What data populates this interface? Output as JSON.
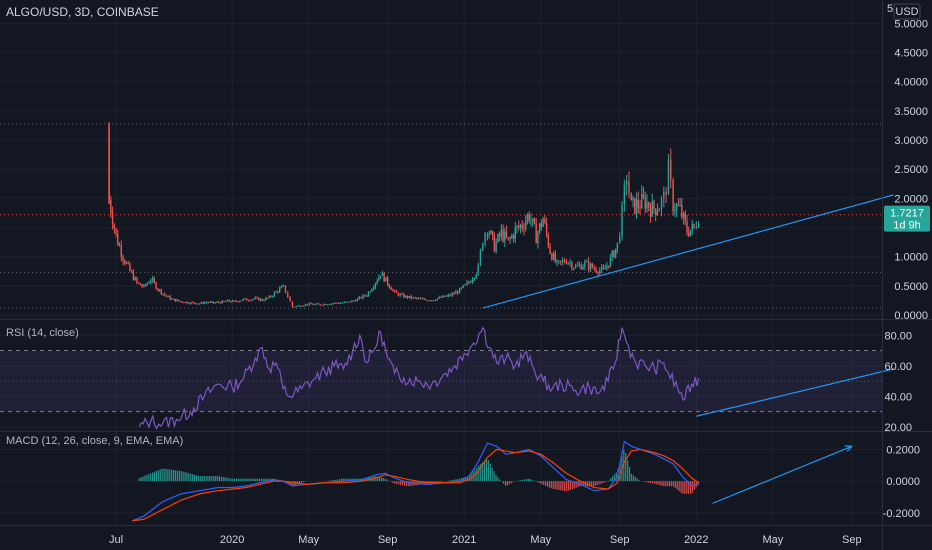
{
  "chart_data": {
    "type": "candlestick",
    "title": "ALGO/USD, 3D, COINBASE",
    "currency": "USD",
    "colors": {
      "background": "#131722",
      "up": "#26a69a",
      "down": "#ef5350",
      "trendline": "#2196f3",
      "rsi_line": "#7e57c2",
      "rsi_band": "#7e57c2",
      "macd_line": "#2962ff",
      "signal_line": "#ff3d00",
      "price_badge": "#26a69a"
    },
    "x_axis": {
      "ticks": [
        "Jul",
        "2020",
        "May",
        "Sep",
        "2021",
        "May",
        "Sep",
        "2022",
        "May",
        "Sep"
      ],
      "tick_dates": [
        2019.5,
        2020.0,
        2020.33,
        2020.67,
        2021.0,
        2021.33,
        2021.67,
        2022.0,
        2022.33,
        2022.67
      ]
    },
    "price_pane": {
      "y_ticks": [
        "5.0000",
        "4.5000",
        "4.0000",
        "3.5000",
        "3.0000",
        "2.5000",
        "2.0000",
        "1.5000",
        "1.0000",
        "0.5000",
        "0.0000"
      ],
      "ylim": [
        -0.05,
        5.4
      ],
      "partial_top_label": "5",
      "last_price": "1.7217",
      "countdown": "1d 9h",
      "hlines": [
        3.28,
        1.72,
        0.73,
        0.12
      ],
      "trendline": [
        [
          2021.08,
          0.12
        ],
        [
          2022.85,
          2.06
        ]
      ],
      "series_close": [
        [
          2019.47,
          1.98
        ],
        [
          2019.5,
          1.35
        ],
        [
          2019.53,
          1.0
        ],
        [
          2019.56,
          0.75
        ],
        [
          2019.59,
          0.55
        ],
        [
          2019.62,
          0.48
        ],
        [
          2019.65,
          0.62
        ],
        [
          2019.68,
          0.45
        ],
        [
          2019.71,
          0.34
        ],
        [
          2019.74,
          0.27
        ],
        [
          2019.77,
          0.24
        ],
        [
          2019.8,
          0.22
        ],
        [
          2019.83,
          0.21
        ],
        [
          2019.86,
          0.2
        ],
        [
          2019.89,
          0.22
        ],
        [
          2019.92,
          0.21
        ],
        [
          2019.95,
          0.22
        ],
        [
          2019.98,
          0.24
        ],
        [
          2020.01,
          0.23
        ],
        [
          2020.04,
          0.26
        ],
        [
          2020.07,
          0.27
        ],
        [
          2020.1,
          0.28
        ],
        [
          2020.13,
          0.26
        ],
        [
          2020.16,
          0.3
        ],
        [
          2020.19,
          0.4
        ],
        [
          2020.22,
          0.48
        ],
        [
          2020.24,
          0.32
        ],
        [
          2020.26,
          0.14
        ],
        [
          2020.3,
          0.17
        ],
        [
          2020.34,
          0.19
        ],
        [
          2020.38,
          0.18
        ],
        [
          2020.42,
          0.2
        ],
        [
          2020.46,
          0.21
        ],
        [
          2020.5,
          0.22
        ],
        [
          2020.54,
          0.27
        ],
        [
          2020.58,
          0.35
        ],
        [
          2020.61,
          0.52
        ],
        [
          2020.64,
          0.72
        ],
        [
          2020.67,
          0.55
        ],
        [
          2020.7,
          0.38
        ],
        [
          2020.74,
          0.32
        ],
        [
          2020.78,
          0.29
        ],
        [
          2020.82,
          0.27
        ],
        [
          2020.86,
          0.26
        ],
        [
          2020.9,
          0.3
        ],
        [
          2020.94,
          0.34
        ],
        [
          2020.98,
          0.42
        ],
        [
          2021.02,
          0.56
        ],
        [
          2021.06,
          0.8
        ],
        [
          2021.08,
          1.32
        ],
        [
          2021.1,
          1.52
        ],
        [
          2021.13,
          1.18
        ],
        [
          2021.16,
          1.4
        ],
        [
          2021.19,
          1.25
        ],
        [
          2021.22,
          1.45
        ],
        [
          2021.25,
          1.55
        ],
        [
          2021.28,
          1.72
        ],
        [
          2021.31,
          1.35
        ],
        [
          2021.34,
          1.65
        ],
        [
          2021.37,
          1.1
        ],
        [
          2021.4,
          0.85
        ],
        [
          2021.44,
          0.95
        ],
        [
          2021.48,
          0.82
        ],
        [
          2021.52,
          0.88
        ],
        [
          2021.56,
          0.8
        ],
        [
          2021.6,
          0.75
        ],
        [
          2021.63,
          0.95
        ],
        [
          2021.66,
          1.2
        ],
        [
          2021.68,
          1.75
        ],
        [
          2021.7,
          2.4
        ],
        [
          2021.72,
          1.85
        ],
        [
          2021.75,
          1.9
        ],
        [
          2021.78,
          1.95
        ],
        [
          2021.81,
          1.82
        ],
        [
          2021.84,
          1.88
        ],
        [
          2021.86,
          2.0
        ],
        [
          2021.88,
          2.45
        ],
        [
          2021.9,
          1.9
        ],
        [
          2021.93,
          1.8
        ],
        [
          2021.96,
          1.45
        ],
        [
          2021.99,
          1.48
        ],
        [
          2022.01,
          1.72
        ]
      ]
    },
    "rsi_pane": {
      "label": "RSI (14, close)",
      "y_ticks": [
        "80.00",
        "60.00",
        "40.00",
        "20.00"
      ],
      "ylim": [
        18,
        90
      ],
      "band": [
        30,
        70
      ],
      "midline": 50,
      "trendline": [
        [
          2022.0,
          27
        ],
        [
          2022.85,
          58
        ]
      ],
      "series": [
        [
          2019.6,
          20
        ],
        [
          2019.65,
          24
        ],
        [
          2019.7,
          22
        ],
        [
          2019.76,
          25
        ],
        [
          2019.82,
          30
        ],
        [
          2019.88,
          40
        ],
        [
          2019.94,
          48
        ],
        [
          2020.0,
          46
        ],
        [
          2020.05,
          52
        ],
        [
          2020.1,
          65
        ],
        [
          2020.13,
          72
        ],
        [
          2020.16,
          58
        ],
        [
          2020.19,
          62
        ],
        [
          2020.22,
          45
        ],
        [
          2020.25,
          40
        ],
        [
          2020.3,
          45
        ],
        [
          2020.36,
          52
        ],
        [
          2020.4,
          56
        ],
        [
          2020.44,
          60
        ],
        [
          2020.48,
          58
        ],
        [
          2020.52,
          70
        ],
        [
          2020.55,
          80
        ],
        [
          2020.58,
          62
        ],
        [
          2020.61,
          70
        ],
        [
          2020.64,
          82
        ],
        [
          2020.67,
          65
        ],
        [
          2020.7,
          55
        ],
        [
          2020.74,
          52
        ],
        [
          2020.8,
          50
        ],
        [
          2020.86,
          48
        ],
        [
          2020.92,
          55
        ],
        [
          2020.96,
          60
        ],
        [
          2021.0,
          68
        ],
        [
          2021.04,
          75
        ],
        [
          2021.08,
          85
        ],
        [
          2021.11,
          72
        ],
        [
          2021.14,
          62
        ],
        [
          2021.18,
          65
        ],
        [
          2021.22,
          60
        ],
        [
          2021.26,
          68
        ],
        [
          2021.3,
          58
        ],
        [
          2021.34,
          50
        ],
        [
          2021.38,
          45
        ],
        [
          2021.42,
          48
        ],
        [
          2021.48,
          44
        ],
        [
          2021.54,
          46
        ],
        [
          2021.58,
          42
        ],
        [
          2021.62,
          50
        ],
        [
          2021.65,
          62
        ],
        [
          2021.68,
          85
        ],
        [
          2021.7,
          75
        ],
        [
          2021.74,
          62
        ],
        [
          2021.78,
          60
        ],
        [
          2021.82,
          58
        ],
        [
          2021.86,
          62
        ],
        [
          2021.88,
          55
        ],
        [
          2021.92,
          45
        ],
        [
          2021.95,
          38
        ],
        [
          2021.98,
          48
        ],
        [
          2022.01,
          52
        ]
      ]
    },
    "macd_pane": {
      "label": "MACD (12, 26, close, 9, EMA, EMA)",
      "y_ticks": [
        "0.2000",
        "0.0000",
        "-0.2000"
      ],
      "ylim": [
        -0.27,
        0.31
      ],
      "arrow": [
        [
          2022.07,
          -0.14
        ],
        [
          2022.67,
          0.22
        ]
      ],
      "macd": [
        [
          2019.57,
          -0.25
        ],
        [
          2019.62,
          -0.22
        ],
        [
          2019.7,
          -0.13
        ],
        [
          2019.78,
          -0.08
        ],
        [
          2019.86,
          -0.06
        ],
        [
          2019.94,
          -0.04
        ],
        [
          2020.0,
          -0.04
        ],
        [
          2020.06,
          -0.03
        ],
        [
          2020.12,
          -0.01
        ],
        [
          2020.18,
          0.01
        ],
        [
          2020.22,
          0.0
        ],
        [
          2020.26,
          -0.03
        ],
        [
          2020.32,
          -0.02
        ],
        [
          2020.4,
          -0.01
        ],
        [
          2020.48,
          0.0
        ],
        [
          2020.56,
          0.01
        ],
        [
          2020.62,
          0.04
        ],
        [
          2020.66,
          0.05
        ],
        [
          2020.7,
          0.02
        ],
        [
          2020.76,
          -0.01
        ],
        [
          2020.84,
          -0.02
        ],
        [
          2020.92,
          -0.01
        ],
        [
          2020.98,
          0.0
        ],
        [
          2021.02,
          0.03
        ],
        [
          2021.06,
          0.12
        ],
        [
          2021.1,
          0.24
        ],
        [
          2021.14,
          0.22
        ],
        [
          2021.18,
          0.17
        ],
        [
          2021.22,
          0.18
        ],
        [
          2021.28,
          0.2
        ],
        [
          2021.33,
          0.16
        ],
        [
          2021.38,
          0.09
        ],
        [
          2021.44,
          0.01
        ],
        [
          2021.5,
          -0.02
        ],
        [
          2021.56,
          -0.06
        ],
        [
          2021.62,
          -0.05
        ],
        [
          2021.66,
          0.03
        ],
        [
          2021.69,
          0.25
        ],
        [
          2021.72,
          0.22
        ],
        [
          2021.76,
          0.2
        ],
        [
          2021.82,
          0.17
        ],
        [
          2021.86,
          0.14
        ],
        [
          2021.9,
          0.11
        ],
        [
          2021.94,
          0.03
        ],
        [
          2021.98,
          -0.03
        ],
        [
          2022.01,
          -0.02
        ]
      ],
      "signal": [
        [
          2019.57,
          -0.25
        ],
        [
          2019.62,
          -0.24
        ],
        [
          2019.7,
          -0.18
        ],
        [
          2019.78,
          -0.12
        ],
        [
          2019.86,
          -0.08
        ],
        [
          2019.94,
          -0.06
        ],
        [
          2020.0,
          -0.05
        ],
        [
          2020.06,
          -0.04
        ],
        [
          2020.12,
          -0.02
        ],
        [
          2020.18,
          0.0
        ],
        [
          2020.22,
          0.0
        ],
        [
          2020.26,
          -0.01
        ],
        [
          2020.32,
          -0.02
        ],
        [
          2020.4,
          -0.01
        ],
        [
          2020.48,
          -0.01
        ],
        [
          2020.56,
          0.0
        ],
        [
          2020.62,
          0.02
        ],
        [
          2020.66,
          0.04
        ],
        [
          2020.7,
          0.03
        ],
        [
          2020.76,
          0.01
        ],
        [
          2020.84,
          -0.01
        ],
        [
          2020.92,
          -0.01
        ],
        [
          2020.98,
          -0.01
        ],
        [
          2021.02,
          0.01
        ],
        [
          2021.06,
          0.06
        ],
        [
          2021.1,
          0.15
        ],
        [
          2021.14,
          0.2
        ],
        [
          2021.18,
          0.19
        ],
        [
          2021.22,
          0.18
        ],
        [
          2021.28,
          0.19
        ],
        [
          2021.33,
          0.17
        ],
        [
          2021.38,
          0.12
        ],
        [
          2021.44,
          0.05
        ],
        [
          2021.5,
          0.0
        ],
        [
          2021.56,
          -0.04
        ],
        [
          2021.62,
          -0.05
        ],
        [
          2021.66,
          -0.01
        ],
        [
          2021.69,
          0.12
        ],
        [
          2021.72,
          0.19
        ],
        [
          2021.76,
          0.2
        ],
        [
          2021.82,
          0.18
        ],
        [
          2021.86,
          0.16
        ],
        [
          2021.9,
          0.13
        ],
        [
          2021.94,
          0.08
        ],
        [
          2021.98,
          0.02
        ],
        [
          2022.01,
          -0.01
        ]
      ]
    }
  }
}
